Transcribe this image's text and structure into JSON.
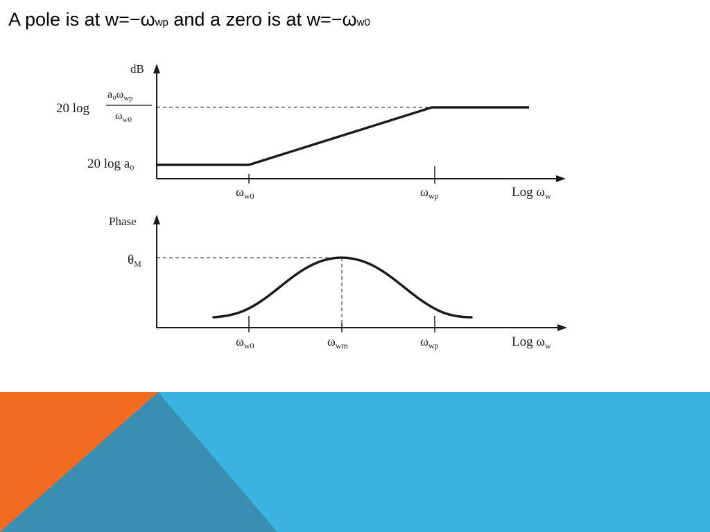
{
  "title": {
    "prefix": "A pole is at w=−ω",
    "pole_sub": "wp",
    "middle": " and a zero is at w=−ω",
    "zero_sub": "w0"
  },
  "magnitude_plot": {
    "y_axis_label": "dB",
    "upper_level_label": "20 log",
    "upper_fraction_numerator": "a₀ω",
    "upper_fraction_numerator_sub": "wp",
    "upper_fraction_denominator": "ω",
    "upper_fraction_denominator_sub": "w0",
    "lower_level_label": "20 log a",
    "lower_level_sub": "0",
    "x_ticks": [
      {
        "main": "ω",
        "sub": "w0"
      },
      {
        "main": "ω",
        "sub": "wp"
      }
    ],
    "x_axis_label": "Log ω",
    "x_axis_sub": "w"
  },
  "phase_plot": {
    "y_axis_label": "Phase",
    "peak_label": "θ",
    "peak_sub": "M",
    "x_ticks": [
      {
        "main": "ω",
        "sub": "w0"
      },
      {
        "main": "ω",
        "sub": "wm"
      },
      {
        "main": "ω",
        "sub": "wp"
      }
    ],
    "x_axis_label": "Log ω",
    "x_axis_sub": "w"
  },
  "colors": {
    "band_blue": "#3bb2e0",
    "band_teal": "#3a8fb0",
    "band_orange": "#f26b21",
    "curve": "#1a1a1a"
  }
}
